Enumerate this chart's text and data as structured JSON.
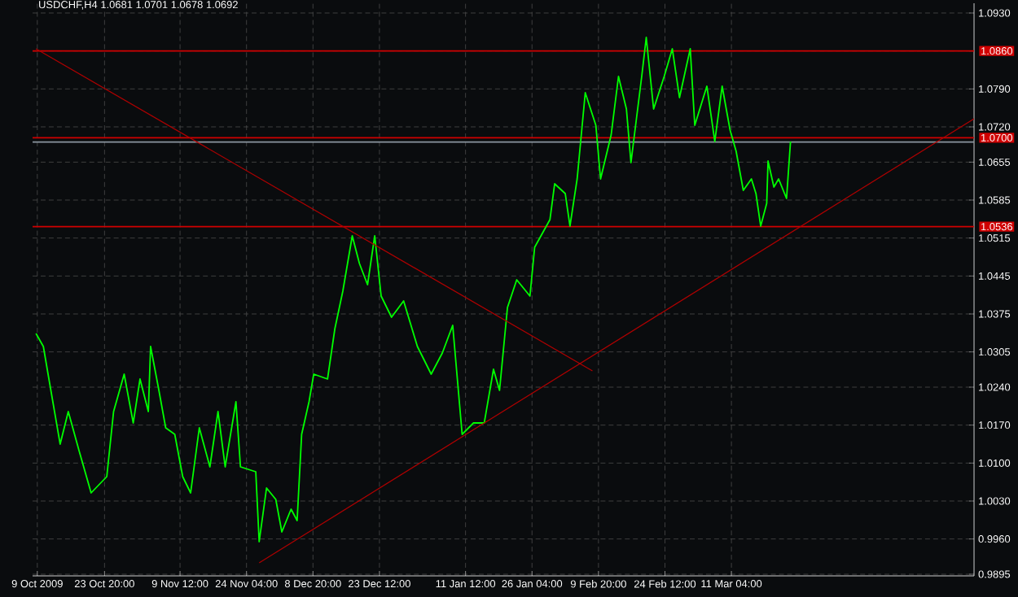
{
  "chart_data": {
    "type": "line",
    "title": "USDCHF,H4  1.0681 1.0701 1.0678 1.0692",
    "xlim": [
      "2009-10-07T23:00",
      "2010-05-03T17:00"
    ],
    "ylim": [
      0.9892,
      1.0948
    ],
    "xticks": [
      {
        "value": "2009-10-09T00:00",
        "label": "9 Oct 2009"
      },
      {
        "value": "2009-10-23T20:00",
        "label": "23 Oct 20:00"
      },
      {
        "value": "2009-11-09T12:00",
        "label": "9 Nov 12:00"
      },
      {
        "value": "2009-11-24T04:00",
        "label": "24 Nov 04:00"
      },
      {
        "value": "2009-12-08T20:00",
        "label": "8 Dec 20:00"
      },
      {
        "value": "2009-12-23T12:00",
        "label": "23 Dec 12:00"
      },
      {
        "value": "2010-01-11T12:00",
        "label": "11 Jan 12:00"
      },
      {
        "value": "2010-01-26T04:00",
        "label": "26 Jan 04:00"
      },
      {
        "value": "2010-02-09T20:00",
        "label": "9 Feb 20:00"
      },
      {
        "value": "2010-02-24T12:00",
        "label": "24 Feb 12:00"
      },
      {
        "value": "2010-03-11T04:00",
        "label": "11 Mar 04:00"
      }
    ],
    "yticks": [
      {
        "value": 1.093,
        "label": "1.0930"
      },
      {
        "value": 1.086,
        "label": null
      },
      {
        "value": 1.079,
        "label": "1.0790"
      },
      {
        "value": 1.072,
        "label": "1.0720"
      },
      1.0655,
      1.0585,
      1.0515,
      1.0445,
      1.0375,
      1.0305,
      {
        "value": 1.024,
        "label": "1.0240"
      },
      {
        "value": 1.017,
        "label": "1.0170"
      },
      {
        "value": 1.01,
        "label": "1.0100"
      },
      {
        "value": 1.003,
        "label": "1.0030"
      },
      {
        "value": 0.996,
        "label": "0.9960"
      },
      0.9895
    ],
    "grid": true,
    "series": [
      {
        "color": "#00ff00",
        "x": [
          "2009-10-08T17:00",
          "2009-10-10T08:00",
          "2009-10-11T09:00",
          "2009-10-14T01:00",
          "2009-10-15T20:00",
          "2009-10-18T05:00",
          "2009-10-20T21:00",
          "2009-10-24T08:00",
          "2009-10-25T20:00",
          "2009-10-28T04:00",
          "2009-10-30T04:00",
          "2009-10-31T16:00",
          "2009-11-02T12:00",
          "2009-11-03T00:00",
          "2009-11-04T20:00",
          "2009-11-06T08:00",
          "2009-11-08T08:00",
          "2009-11-10T02:00",
          "2009-11-11T20:00",
          "2009-11-13T18:00",
          "2009-11-16T02:00",
          "2009-11-17T21:00",
          "2009-11-19T11:00",
          "2009-11-21T20:00",
          "2009-11-22T20:00",
          "2009-11-26T05:00",
          "2009-11-26T23:00",
          "2009-11-28T14:00",
          "2009-11-30T15:00",
          "2009-12-01T23:00",
          "2009-12-04T00:00",
          "2009-12-05T08:00",
          "2009-12-06T08:00",
          "2009-12-07T23:00",
          "2009-12-09T00:00",
          "2009-12-12T01:00",
          "2009-12-13T16:00",
          "2009-12-15T10:00",
          "2009-12-17T12:00",
          "2009-12-19T02:00",
          "2009-12-20T21:00",
          "2009-12-22T11:00",
          "2009-12-23T21:00",
          "2009-12-26T04:00",
          "2009-12-28T20:00",
          "2009-12-31T21:00",
          "2010-01-03T22:00",
          "2010-01-06T09:00",
          "2010-01-08T16:00",
          "2010-01-10T18:00",
          "2010-01-13T06:00",
          "2010-01-15T15:00",
          "2010-01-17T16:00",
          "2010-01-19T00:00",
          "2010-01-20T18:00",
          "2010-01-22T19:00",
          "2010-01-25T17:00",
          "2010-01-26T18:00",
          "2010-01-30T03:00",
          "2010-01-31T04:00",
          "2010-02-02T12:00",
          "2010-02-03T13:00",
          "2010-02-05T03:00",
          "2010-02-06T22:00",
          "2010-02-09T06:00",
          "2010-02-10T07:00",
          "2010-02-12T15:00",
          "2010-02-14T06:00",
          "2010-02-16T00:00",
          "2010-02-17T00:00",
          "2010-02-19T09:00",
          "2010-02-20T09:00",
          "2010-02-22T00:00",
          "2010-02-24T08:00",
          "2010-02-26T03:00",
          "2010-02-27T17:00",
          "2010-03-02T02:00",
          "2010-03-03T02:00",
          "2010-03-05T18:00",
          "2010-03-07T12:00",
          "2010-03-09T03:00",
          "2010-03-10T21:00",
          "2010-03-12T05:00",
          "2010-03-13T19:00",
          "2010-03-15T14:00",
          "2010-03-16T14:00",
          "2010-03-17T15:00",
          "2010-03-18T23:00",
          "2010-03-19T06:00",
          "2010-03-20T13:00",
          "2010-03-21T14:00",
          "2010-03-23T08:00",
          "2010-03-24T05:00"
        ],
        "values": [
          1.0339,
          1.0315,
          1.0264,
          1.0135,
          1.0195,
          1.0123,
          1.0045,
          1.0075,
          1.0195,
          1.0264,
          1.0174,
          1.0255,
          1.0195,
          1.0315,
          1.0234,
          1.0165,
          1.0153,
          1.0075,
          1.0045,
          1.0165,
          1.0093,
          1.0195,
          1.0093,
          1.0213,
          1.0093,
          1.0084,
          0.9955,
          1.0054,
          1.0033,
          0.9973,
          1.0015,
          0.9994,
          1.0153,
          1.0213,
          1.0264,
          1.0255,
          1.0348,
          1.0417,
          1.0519,
          1.0468,
          1.0429,
          1.0519,
          1.0408,
          1.0369,
          1.0399,
          1.0315,
          1.0264,
          1.0303,
          1.0354,
          1.0153,
          1.0174,
          1.0174,
          1.0273,
          1.0234,
          1.0387,
          1.0438,
          1.0408,
          1.0498,
          1.0549,
          1.0615,
          1.0597,
          1.0537,
          1.0624,
          1.0783,
          1.0723,
          1.0624,
          1.0705,
          1.0813,
          1.0753,
          1.0654,
          1.0813,
          1.0885,
          1.0753,
          1.0813,
          1.0864,
          1.0774,
          1.0864,
          1.0723,
          1.0795,
          1.0693,
          1.0795,
          1.0714,
          1.0675,
          1.0603,
          1.0624,
          1.0597,
          1.0537,
          1.0579,
          1.0657,
          1.0609,
          1.0624,
          1.0588,
          1.0693
        ]
      },
      {
        "color": "#b00000",
        "x": [
          "2009-10-08T17:00",
          "2010-02-08T12:00"
        ],
        "values": [
          1.0864,
          1.027
        ]
      },
      {
        "color": "#b00000",
        "x": [
          "2009-11-26T23:00",
          "2010-05-03T17:00"
        ],
        "values": [
          0.9916,
          1.0735
        ]
      }
    ],
    "ref_lines": [
      {
        "axis": "y",
        "value": 1.086,
        "label": "1.0860",
        "color": "#d00000"
      },
      {
        "axis": "y",
        "value": 1.07,
        "label": "1.0700",
        "color": "#d00000"
      },
      {
        "axis": "y",
        "value": 1.0692,
        "color": "#8c96a0"
      },
      {
        "axis": "y",
        "value": 1.0536,
        "label": "1.0536",
        "color": "#d00000"
      }
    ]
  }
}
